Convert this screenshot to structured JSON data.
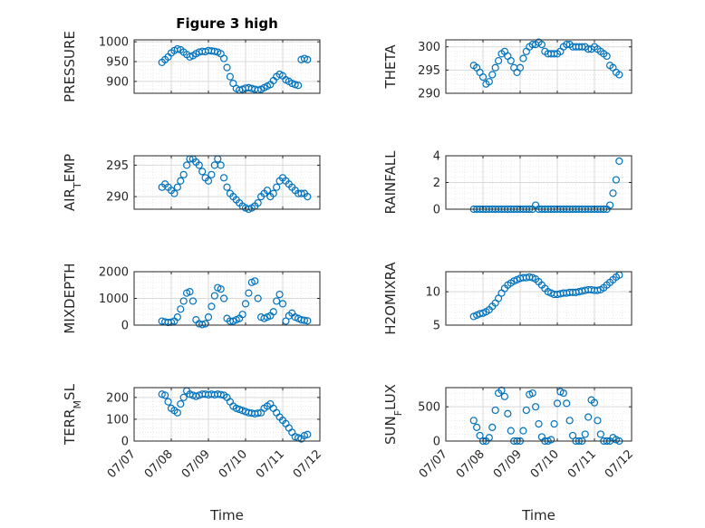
{
  "figure": {
    "title": "Figure 3 high",
    "xlabel": "Time"
  },
  "colors": {
    "marker": "#0072BD",
    "axis": "#262626",
    "grid": "#d9d9d9"
  },
  "chart_data": [
    {
      "type": "scatter",
      "title": "Figure 3 high",
      "xlabel": "",
      "ylabel": "PRESSURE",
      "xlim": [
        "07/07",
        "07/12"
      ],
      "ylim": [
        870,
        1005
      ],
      "yticks": [
        1000,
        950,
        900
      ],
      "grid": true,
      "x": [
        "07/07 18:00",
        "07/07 20:00",
        "07/07 22:00",
        "07/08 00:00",
        "07/08 02:00",
        "07/08 04:00",
        "07/08 06:00",
        "07/08 08:00",
        "07/08 10:00",
        "07/08 12:00",
        "07/08 14:00",
        "07/08 16:00",
        "07/08 18:00",
        "07/08 20:00",
        "07/08 22:00",
        "07/09 00:00",
        "07/09 02:00",
        "07/09 04:00",
        "07/09 06:00",
        "07/09 08:00",
        "07/09 10:00",
        "07/09 12:00",
        "07/09 14:00",
        "07/09 16:00",
        "07/09 18:00",
        "07/09 20:00",
        "07/09 22:00",
        "07/10 00:00",
        "07/10 02:00",
        "07/10 04:00",
        "07/10 06:00",
        "07/10 08:00",
        "07/10 10:00",
        "07/10 12:00",
        "07/10 14:00",
        "07/10 16:00",
        "07/10 18:00",
        "07/10 20:00",
        "07/10 22:00",
        "07/11 00:00",
        "07/11 02:00",
        "07/11 04:00",
        "07/11 06:00",
        "07/11 08:00",
        "07/11 10:00",
        "07/11 12:00",
        "07/11 14:00",
        "07/11 16:00"
      ],
      "values": [
        948,
        955,
        962,
        972,
        978,
        982,
        980,
        974,
        968,
        962,
        965,
        970,
        974,
        976,
        975,
        978,
        977,
        976,
        974,
        970,
        958,
        935,
        912,
        895,
        882,
        878,
        880,
        883,
        884,
        882,
        880,
        878,
        880,
        884,
        888,
        892,
        902,
        912,
        918,
        914,
        904,
        900,
        895,
        892,
        890,
        955,
        958,
        955
      ]
    },
    {
      "type": "scatter",
      "title": "",
      "xlabel": "",
      "ylabel": "THETA",
      "xlim": [
        "07/07",
        "07/12"
      ],
      "ylim": [
        290,
        301.5
      ],
      "yticks": [
        300,
        295,
        290
      ],
      "grid": true,
      "x": [
        "07/07 18:00",
        "07/07 20:00",
        "07/07 22:00",
        "07/08 00:00",
        "07/08 02:00",
        "07/08 04:00",
        "07/08 06:00",
        "07/08 08:00",
        "07/08 10:00",
        "07/08 12:00",
        "07/08 14:00",
        "07/08 16:00",
        "07/08 18:00",
        "07/08 20:00",
        "07/08 22:00",
        "07/09 00:00",
        "07/09 02:00",
        "07/09 04:00",
        "07/09 06:00",
        "07/09 08:00",
        "07/09 10:00",
        "07/09 12:00",
        "07/09 14:00",
        "07/09 16:00",
        "07/09 18:00",
        "07/09 20:00",
        "07/09 22:00",
        "07/10 00:00",
        "07/10 02:00",
        "07/10 04:00",
        "07/10 06:00",
        "07/10 08:00",
        "07/10 10:00",
        "07/10 12:00",
        "07/10 14:00",
        "07/10 16:00",
        "07/10 18:00",
        "07/10 20:00",
        "07/10 22:00",
        "07/11 00:00",
        "07/11 02:00",
        "07/11 04:00",
        "07/11 06:00",
        "07/11 08:00",
        "07/11 10:00",
        "07/11 12:00",
        "07/11 14:00",
        "07/11 16:00"
      ],
      "values": [
        296,
        295.5,
        294.5,
        293.5,
        292,
        292.5,
        294,
        295.5,
        297,
        298.5,
        299,
        298,
        297,
        295.5,
        294.5,
        295.5,
        297.5,
        299,
        300,
        300.5,
        300.5,
        301,
        300.5,
        299,
        298.5,
        298.5,
        298.5,
        298.5,
        299,
        300,
        300.5,
        300.5,
        300,
        300,
        300,
        300,
        300,
        299.5,
        299.5,
        300,
        299.5,
        299,
        298.5,
        298,
        296,
        295.5,
        294.5,
        294
      ]
    },
    {
      "type": "scatter",
      "title": "",
      "xlabel": "",
      "ylabel": "AIR_TEMP",
      "xlim": [
        "07/07",
        "07/12"
      ],
      "ylim": [
        288,
        296.5
      ],
      "yticks": [
        295,
        290
      ],
      "grid": true,
      "x": [
        "07/07 18:00",
        "07/07 20:00",
        "07/07 22:00",
        "07/08 00:00",
        "07/08 02:00",
        "07/08 04:00",
        "07/08 06:00",
        "07/08 08:00",
        "07/08 10:00",
        "07/08 12:00",
        "07/08 14:00",
        "07/08 16:00",
        "07/08 18:00",
        "07/08 20:00",
        "07/08 22:00",
        "07/09 00:00",
        "07/09 02:00",
        "07/09 04:00",
        "07/09 06:00",
        "07/09 08:00",
        "07/09 10:00",
        "07/09 12:00",
        "07/09 14:00",
        "07/09 16:00",
        "07/09 18:00",
        "07/09 20:00",
        "07/09 22:00",
        "07/10 00:00",
        "07/10 02:00",
        "07/10 04:00",
        "07/10 06:00",
        "07/10 08:00",
        "07/10 10:00",
        "07/10 12:00",
        "07/10 14:00",
        "07/10 16:00",
        "07/10 18:00",
        "07/10 20:00",
        "07/10 22:00",
        "07/11 00:00",
        "07/11 02:00",
        "07/11 04:00",
        "07/11 06:00",
        "07/11 08:00",
        "07/11 10:00",
        "07/11 12:00",
        "07/11 14:00",
        "07/11 16:00"
      ],
      "values": [
        291.5,
        292,
        291.5,
        291,
        290.5,
        291.5,
        292.5,
        293.5,
        295,
        296,
        296,
        295.5,
        295,
        294,
        293,
        292.5,
        293.5,
        295,
        296,
        295,
        293,
        291.5,
        290.5,
        290,
        289.5,
        289,
        288.5,
        288.2,
        288,
        288.2,
        288.5,
        289,
        290,
        290.5,
        291,
        290,
        290.5,
        291.5,
        292.5,
        293,
        292.5,
        292,
        291.5,
        291,
        290.5,
        290.5,
        290.5,
        290
      ]
    },
    {
      "type": "scatter",
      "title": "",
      "xlabel": "",
      "ylabel": "RAINFALL",
      "xlim": [
        "07/07",
        "07/12"
      ],
      "ylim": [
        0,
        4
      ],
      "yticks": [
        4,
        2,
        0
      ],
      "grid": true,
      "x": [
        "07/07 18:00",
        "07/07 20:00",
        "07/07 22:00",
        "07/08 00:00",
        "07/08 02:00",
        "07/08 04:00",
        "07/08 06:00",
        "07/08 08:00",
        "07/08 10:00",
        "07/08 12:00",
        "07/08 14:00",
        "07/08 16:00",
        "07/08 18:00",
        "07/08 20:00",
        "07/08 22:00",
        "07/09 00:00",
        "07/09 02:00",
        "07/09 04:00",
        "07/09 06:00",
        "07/09 08:00",
        "07/09 10:00",
        "07/09 12:00",
        "07/09 14:00",
        "07/09 16:00",
        "07/09 18:00",
        "07/09 20:00",
        "07/09 22:00",
        "07/10 00:00",
        "07/10 02:00",
        "07/10 04:00",
        "07/10 06:00",
        "07/10 08:00",
        "07/10 10:00",
        "07/10 12:00",
        "07/10 14:00",
        "07/10 16:00",
        "07/10 18:00",
        "07/10 20:00",
        "07/10 22:00",
        "07/11 00:00",
        "07/11 02:00",
        "07/11 04:00",
        "07/11 06:00",
        "07/11 08:00",
        "07/11 10:00",
        "07/11 12:00",
        "07/11 14:00",
        "07/11 16:00"
      ],
      "values": [
        0,
        0,
        0,
        0,
        0,
        0,
        0,
        0,
        0,
        0,
        0,
        0,
        0,
        0,
        0,
        0,
        0,
        0,
        0,
        0,
        0.3,
        0,
        0,
        0,
        0,
        0,
        0,
        0,
        0,
        0,
        0,
        0,
        0,
        0,
        0,
        0,
        0,
        0,
        0,
        0,
        0,
        0,
        0,
        0,
        0.3,
        1.2,
        2.2,
        3.6
      ]
    },
    {
      "type": "scatter",
      "title": "",
      "xlabel": "",
      "ylabel": "MIXDEPTH",
      "xlim": [
        "07/07",
        "07/12"
      ],
      "ylim": [
        0,
        2000
      ],
      "yticks": [
        2000,
        1000,
        0
      ],
      "grid": true,
      "x": [
        "07/07 18:00",
        "07/07 20:00",
        "07/07 22:00",
        "07/08 00:00",
        "07/08 02:00",
        "07/08 04:00",
        "07/08 06:00",
        "07/08 08:00",
        "07/08 10:00",
        "07/08 12:00",
        "07/08 14:00",
        "07/08 16:00",
        "07/08 18:00",
        "07/08 20:00",
        "07/08 22:00",
        "07/09 00:00",
        "07/09 02:00",
        "07/09 04:00",
        "07/09 06:00",
        "07/09 08:00",
        "07/09 10:00",
        "07/09 12:00",
        "07/09 14:00",
        "07/09 16:00",
        "07/09 18:00",
        "07/09 20:00",
        "07/09 22:00",
        "07/10 00:00",
        "07/10 02:00",
        "07/10 04:00",
        "07/10 06:00",
        "07/10 08:00",
        "07/10 10:00",
        "07/10 12:00",
        "07/10 14:00",
        "07/10 16:00",
        "07/10 18:00",
        "07/10 20:00",
        "07/10 22:00",
        "07/11 00:00",
        "07/11 02:00",
        "07/11 04:00",
        "07/11 06:00",
        "07/11 08:00",
        "07/11 10:00",
        "07/11 12:00",
        "07/11 14:00",
        "07/11 16:00"
      ],
      "values": [
        150,
        120,
        100,
        110,
        150,
        300,
        600,
        900,
        1200,
        1250,
        900,
        200,
        50,
        20,
        50,
        300,
        700,
        1100,
        1400,
        1350,
        1000,
        250,
        150,
        150,
        200,
        250,
        400,
        800,
        1200,
        1600,
        1650,
        1000,
        300,
        250,
        300,
        350,
        500,
        900,
        1150,
        800,
        150,
        350,
        450,
        300,
        250,
        200,
        180,
        160
      ]
    },
    {
      "type": "scatter",
      "title": "",
      "xlabel": "",
      "ylabel": "H2OMIXRA",
      "xlim": [
        "07/07",
        "07/12"
      ],
      "ylim": [
        5,
        13
      ],
      "yticks": [
        10,
        5
      ],
      "grid": true,
      "x": [
        "07/07 18:00",
        "07/07 20:00",
        "07/07 22:00",
        "07/08 00:00",
        "07/08 02:00",
        "07/08 04:00",
        "07/08 06:00",
        "07/08 08:00",
        "07/08 10:00",
        "07/08 12:00",
        "07/08 14:00",
        "07/08 16:00",
        "07/08 18:00",
        "07/08 20:00",
        "07/08 22:00",
        "07/09 00:00",
        "07/09 02:00",
        "07/09 04:00",
        "07/09 06:00",
        "07/09 08:00",
        "07/09 10:00",
        "07/09 12:00",
        "07/09 14:00",
        "07/09 16:00",
        "07/09 18:00",
        "07/09 20:00",
        "07/09 22:00",
        "07/10 00:00",
        "07/10 02:00",
        "07/10 04:00",
        "07/10 06:00",
        "07/10 08:00",
        "07/10 10:00",
        "07/10 12:00",
        "07/10 14:00",
        "07/10 16:00",
        "07/10 18:00",
        "07/10 20:00",
        "07/10 22:00",
        "07/11 00:00",
        "07/11 02:00",
        "07/11 04:00",
        "07/11 06:00",
        "07/11 08:00",
        "07/11 10:00",
        "07/11 12:00",
        "07/11 14:00",
        "07/11 16:00"
      ],
      "values": [
        6.3,
        6.5,
        6.7,
        6.8,
        7,
        7.3,
        7.8,
        8.3,
        9,
        9.8,
        10.5,
        11,
        11.3,
        11.6,
        11.8,
        12,
        12.1,
        12.1,
        12.2,
        12.1,
        11.9,
        11.5,
        11,
        10.5,
        10,
        9.8,
        9.6,
        9.6,
        9.7,
        9.8,
        9.8,
        9.9,
        9.9,
        9.9,
        10,
        10.1,
        10.2,
        10.3,
        10.3,
        10.2,
        10.2,
        10.3,
        10.6,
        11,
        11.4,
        11.8,
        12.2,
        12.5
      ]
    },
    {
      "type": "scatter",
      "title": "",
      "xlabel": "Time",
      "ylabel": "TERR_MSL",
      "xlim": [
        "07/07",
        "07/12"
      ],
      "ylim": [
        0,
        245
      ],
      "yticks": [
        200,
        100,
        0
      ],
      "grid": true,
      "xticklabels": [
        "07/07",
        "07/08",
        "07/09",
        "07/10",
        "07/11",
        "07/12"
      ],
      "x": [
        "07/07 18:00",
        "07/07 20:00",
        "07/07 22:00",
        "07/08 00:00",
        "07/08 02:00",
        "07/08 04:00",
        "07/08 06:00",
        "07/08 08:00",
        "07/08 10:00",
        "07/08 12:00",
        "07/08 14:00",
        "07/08 16:00",
        "07/08 18:00",
        "07/08 20:00",
        "07/08 22:00",
        "07/09 00:00",
        "07/09 02:00",
        "07/09 04:00",
        "07/09 06:00",
        "07/09 08:00",
        "07/09 10:00",
        "07/09 12:00",
        "07/09 14:00",
        "07/09 16:00",
        "07/09 18:00",
        "07/09 20:00",
        "07/09 22:00",
        "07/10 00:00",
        "07/10 02:00",
        "07/10 04:00",
        "07/10 06:00",
        "07/10 08:00",
        "07/10 10:00",
        "07/10 12:00",
        "07/10 14:00",
        "07/10 16:00",
        "07/10 18:00",
        "07/10 20:00",
        "07/10 22:00",
        "07/11 00:00",
        "07/11 02:00",
        "07/11 04:00",
        "07/11 06:00",
        "07/11 08:00",
        "07/11 10:00",
        "07/11 12:00",
        "07/11 14:00",
        "07/11 16:00"
      ],
      "values": [
        215,
        210,
        180,
        150,
        140,
        130,
        170,
        200,
        230,
        215,
        210,
        205,
        210,
        215,
        215,
        212,
        215,
        212,
        215,
        213,
        210,
        200,
        180,
        160,
        150,
        145,
        140,
        135,
        130,
        128,
        125,
        128,
        130,
        150,
        160,
        170,
        150,
        130,
        110,
        95,
        80,
        60,
        40,
        20,
        15,
        10,
        25,
        30
      ]
    },
    {
      "type": "scatter",
      "title": "",
      "xlabel": "Time",
      "ylabel": "SUN_FLUX",
      "xlim": [
        "07/07",
        "07/12"
      ],
      "ylim": [
        0,
        780
      ],
      "yticks": [
        500,
        0
      ],
      "grid": true,
      "xticklabels": [
        "07/07",
        "07/08",
        "07/09",
        "07/10",
        "07/11",
        "07/12"
      ],
      "x": [
        "07/07 18:00",
        "07/07 20:00",
        "07/07 22:00",
        "07/08 00:00",
        "07/08 02:00",
        "07/08 04:00",
        "07/08 06:00",
        "07/08 08:00",
        "07/08 10:00",
        "07/08 12:00",
        "07/08 14:00",
        "07/08 16:00",
        "07/08 18:00",
        "07/08 20:00",
        "07/08 22:00",
        "07/09 00:00",
        "07/09 02:00",
        "07/09 04:00",
        "07/09 06:00",
        "07/09 08:00",
        "07/09 10:00",
        "07/09 12:00",
        "07/09 14:00",
        "07/09 16:00",
        "07/09 18:00",
        "07/09 20:00",
        "07/09 22:00",
        "07/10 00:00",
        "07/10 02:00",
        "07/10 04:00",
        "07/10 06:00",
        "07/10 08:00",
        "07/10 10:00",
        "07/10 12:00",
        "07/10 14:00",
        "07/10 16:00",
        "07/10 18:00",
        "07/10 20:00",
        "07/10 22:00",
        "07/11 00:00",
        "07/11 02:00",
        "07/11 04:00",
        "07/11 06:00",
        "07/11 08:00",
        "07/11 10:00",
        "07/11 12:00",
        "07/11 14:00",
        "07/11 16:00"
      ],
      "values": [
        300,
        200,
        80,
        0,
        0,
        50,
        200,
        450,
        700,
        740,
        650,
        400,
        150,
        0,
        0,
        0,
        150,
        450,
        680,
        700,
        500,
        250,
        60,
        0,
        0,
        20,
        250,
        550,
        720,
        700,
        550,
        300,
        80,
        0,
        0,
        0,
        100,
        350,
        600,
        560,
        300,
        100,
        0,
        0,
        0,
        50,
        20,
        0
      ]
    }
  ]
}
